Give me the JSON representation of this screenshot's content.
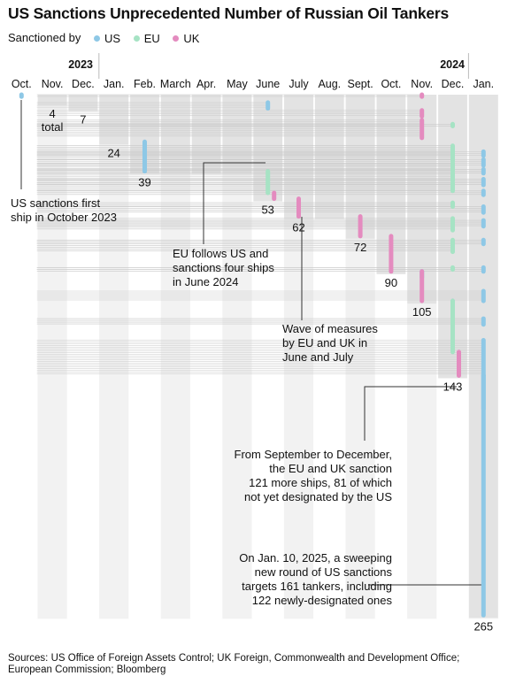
{
  "title": "US Sanctions Unprecedented Number of Russian Oil Tankers",
  "legend": {
    "label": "Sanctioned by",
    "items": [
      {
        "name": "US",
        "color": "#8ec8e6"
      },
      {
        "name": "EU",
        "color": "#a6e3c4"
      },
      {
        "name": "UK",
        "color": "#e48bbf"
      }
    ]
  },
  "chart_data": {
    "type": "cumulative step timeline",
    "year_labels": [
      "2023",
      "2024"
    ],
    "months": [
      "Oct.",
      "Nov.",
      "Dec.",
      "Jan.",
      "Feb.",
      "March",
      "Apr.",
      "May",
      "June",
      "July",
      "Aug.",
      "Sept.",
      "Oct.",
      "Nov.",
      "Dec.",
      "Jan."
    ],
    "cumulative_totals": [
      {
        "month": "Oct.",
        "total": 1,
        "label": ""
      },
      {
        "month": "Nov.",
        "total": 4,
        "label": "4\ntotal"
      },
      {
        "month": "Dec.",
        "total": 7,
        "label": "7"
      },
      {
        "month": "Jan.",
        "total": 24,
        "label": "24"
      },
      {
        "month": "Feb.",
        "total": 39,
        "label": "39"
      },
      {
        "month": "March",
        "total": 39,
        "label": ""
      },
      {
        "month": "Apr.",
        "total": 39,
        "label": ""
      },
      {
        "month": "May",
        "total": 39,
        "label": ""
      },
      {
        "month": "June",
        "total": 53,
        "label": "53"
      },
      {
        "month": "July",
        "total": 62,
        "label": "62"
      },
      {
        "month": "Aug.",
        "total": 62,
        "label": ""
      },
      {
        "month": "Sept.",
        "total": 72,
        "label": "72"
      },
      {
        "month": "Oct.",
        "total": 90,
        "label": "90"
      },
      {
        "month": "Nov.",
        "total": 105,
        "label": "105"
      },
      {
        "month": "Dec.",
        "total": 143,
        "label": "143"
      },
      {
        "month": "Jan.",
        "total": 265,
        "label": "265"
      }
    ],
    "new_ships_by_month": [
      {
        "month": "Oct.",
        "segments": [
          {
            "by": "US",
            "count": 1
          }
        ]
      },
      {
        "month": "Nov.",
        "segments": [
          {
            "by": "US",
            "count": 3
          }
        ]
      },
      {
        "month": "Dec.",
        "segments": [
          {
            "by": "US",
            "count": 3
          }
        ]
      },
      {
        "month": "Jan.",
        "segments": [
          {
            "by": "US",
            "count": 17
          }
        ]
      },
      {
        "month": "Feb.",
        "segments": [
          {
            "by": "US",
            "count": 15
          }
        ]
      },
      {
        "month": "June",
        "segments": [
          {
            "by": "EU",
            "count": 11
          },
          {
            "by": "UK",
            "count": 3
          }
        ]
      },
      {
        "month": "July",
        "segments": [
          {
            "by": "UK",
            "count": 9
          }
        ]
      },
      {
        "month": "Sept.",
        "segments": [
          {
            "by": "UK",
            "count": 10
          }
        ]
      },
      {
        "month": "Oct.",
        "segments": [
          {
            "by": "UK",
            "count": 18
          }
        ]
      },
      {
        "month": "Nov.",
        "segments": [
          {
            "by": "UK",
            "count": 15
          }
        ]
      },
      {
        "month": "Dec.",
        "segments": [
          {
            "by": "EU",
            "count": 26
          },
          {
            "by": "UK",
            "count": 12
          }
        ]
      },
      {
        "month": "Jan.",
        "segments": [
          {
            "by": "US",
            "count": 122
          }
        ]
      }
    ],
    "later_sanctions_of_earlier_ships": [
      {
        "month": "June",
        "by": "US",
        "from_total": 4,
        "to_total": 7
      },
      {
        "month": "Nov.",
        "by": "UK",
        "from_total": 0,
        "to_total": 1
      },
      {
        "month": "Nov.",
        "by": "UK",
        "from_total": 8,
        "to_total": 11
      },
      {
        "month": "Nov.",
        "by": "UK",
        "from_total": 13,
        "to_total": 22
      },
      {
        "month": "Dec.",
        "by": "EU",
        "from_total": 15,
        "to_total": 16
      },
      {
        "month": "Dec.",
        "by": "EU",
        "from_total": 26,
        "to_total": 34
      },
      {
        "month": "Dec.",
        "by": "EU",
        "from_total": 35,
        "to_total": 39
      },
      {
        "month": "Dec.",
        "by": "EU",
        "from_total": 40,
        "to_total": 44
      },
      {
        "month": "Dec.",
        "by": "EU",
        "from_total": 45,
        "to_total": 49
      },
      {
        "month": "Dec.",
        "by": "EU",
        "from_total": 55,
        "to_total": 57
      },
      {
        "month": "Dec.",
        "by": "EU",
        "from_total": 63,
        "to_total": 69
      },
      {
        "month": "Dec.",
        "by": "EU",
        "from_total": 74,
        "to_total": 80
      },
      {
        "month": "Dec.",
        "by": "EU",
        "from_total": 88,
        "to_total": 89
      },
      {
        "month": "Jan.",
        "by": "US",
        "from_total": 29,
        "to_total": 31
      },
      {
        "month": "Jan.",
        "by": "US",
        "from_total": 33,
        "to_total": 36
      },
      {
        "month": "Jan.",
        "by": "US",
        "from_total": 38,
        "to_total": 40
      },
      {
        "month": "Jan.",
        "by": "US",
        "from_total": 43,
        "to_total": 46
      },
      {
        "month": "Jan.",
        "by": "US",
        "from_total": 49,
        "to_total": 51
      },
      {
        "month": "Jan.",
        "by": "US",
        "from_total": 57,
        "to_total": 60
      },
      {
        "month": "Jan.",
        "by": "US",
        "from_total": 64,
        "to_total": 67
      },
      {
        "month": "Jan.",
        "by": "US",
        "from_total": 74,
        "to_total": 76
      },
      {
        "month": "Jan.",
        "by": "US",
        "from_total": 88,
        "to_total": 90
      },
      {
        "month": "Jan.",
        "by": "US",
        "from_total": 100,
        "to_total": 105
      },
      {
        "month": "Jan.",
        "by": "US",
        "from_total": 114,
        "to_total": 117
      },
      {
        "month": "Jan.",
        "by": "US",
        "from_total": 125,
        "to_total": 143
      }
    ]
  },
  "annotations": [
    {
      "text": "US sanctions first\nship in October 2023"
    },
    {
      "text": "EU follows US and\nsanctions four ships\nin June 2024"
    },
    {
      "text": "Wave of measures\nby EU and UK in\nJune and July"
    },
    {
      "text": "From September to December,\nthe EU and UK sanction\n121 more ships, 81 of which\nnot yet designated by the US"
    },
    {
      "text": "On Jan. 10, 2025, a sweeping\nnew round of US sanctions\ntargets 161 tankers, including\n122 newly-designated ones"
    }
  ],
  "source": "Sources: US Office of Foreign Assets Control; UK Foreign, Commonwealth and Development Office; European Commission; Bloomberg"
}
